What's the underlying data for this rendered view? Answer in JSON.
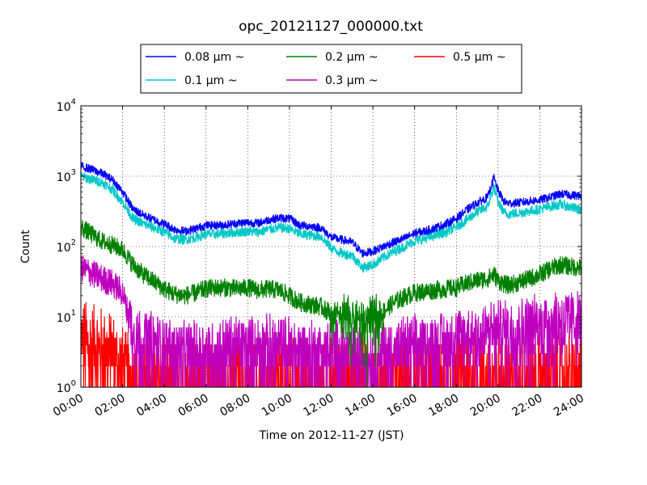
{
  "chart_data": {
    "type": "line",
    "title": "opc_20121127_000000.txt",
    "xlabel": "Time on 2012-11-27 (JST)",
    "ylabel": "Count",
    "xlim": [
      "00:00",
      "24:00"
    ],
    "ylim": [
      1,
      10000
    ],
    "yscale": "log",
    "grid": true,
    "legend_position": "top-center",
    "x_ticks": [
      "00:00",
      "02:00",
      "04:00",
      "06:00",
      "08:00",
      "10:00",
      "12:00",
      "14:00",
      "16:00",
      "18:00",
      "20:00",
      "22:00",
      "24:00"
    ],
    "y_ticks": [
      {
        "base": "10",
        "exp": "0"
      },
      {
        "base": "10",
        "exp": "1"
      },
      {
        "base": "10",
        "exp": "2"
      },
      {
        "base": "10",
        "exp": "3"
      },
      {
        "base": "10",
        "exp": "4"
      }
    ],
    "x_hours": [
      0,
      0.5,
      1,
      1.5,
      2,
      2.5,
      3,
      3.5,
      4,
      4.5,
      5,
      5.5,
      6,
      6.5,
      7,
      7.5,
      8,
      8.5,
      9,
      9.5,
      10,
      10.5,
      11,
      11.5,
      12,
      12.5,
      13,
      13.5,
      14,
      14.5,
      15,
      15.5,
      16,
      16.5,
      17,
      17.5,
      18,
      18.5,
      19,
      19.5,
      19.8,
      20,
      20.3,
      20.5,
      21,
      21.5,
      22,
      22.5,
      23,
      23.5,
      24
    ],
    "series": [
      {
        "name": "0.08 μm ~",
        "color": "#0000ff",
        "noise": 0.06,
        "values": [
          1400,
          1250,
          1100,
          900,
          600,
          340,
          280,
          240,
          210,
          175,
          165,
          180,
          200,
          200,
          205,
          215,
          220,
          215,
          240,
          255,
          250,
          200,
          195,
          185,
          135,
          125,
          115,
          80,
          85,
          100,
          115,
          130,
          155,
          165,
          185,
          210,
          250,
          330,
          420,
          500,
          950,
          620,
          430,
          410,
          420,
          440,
          460,
          500,
          560,
          540,
          520
        ]
      },
      {
        "name": "0.1 μm ~",
        "color": "#00c8c8",
        "noise": 0.07,
        "values": [
          1000,
          900,
          820,
          650,
          430,
          250,
          210,
          185,
          160,
          130,
          125,
          135,
          150,
          150,
          155,
          160,
          165,
          160,
          175,
          185,
          180,
          150,
          145,
          140,
          95,
          80,
          75,
          50,
          55,
          70,
          85,
          100,
          120,
          130,
          145,
          160,
          190,
          240,
          310,
          370,
          700,
          430,
          300,
          290,
          300,
          320,
          340,
          370,
          400,
          360,
          330
        ]
      },
      {
        "name": "0.2 μm ~",
        "color": "#008000",
        "noise": 0.13,
        "values": [
          190,
          150,
          120,
          105,
          90,
          55,
          40,
          32,
          25,
          21,
          20,
          22,
          25,
          26,
          26,
          25,
          26,
          24,
          25,
          24,
          20,
          16,
          15,
          14,
          11,
          10,
          9,
          8,
          9,
          12,
          16,
          19,
          22,
          23,
          24,
          25,
          26,
          30,
          33,
          35,
          40,
          33,
          29,
          28,
          31,
          35,
          40,
          48,
          55,
          52,
          50
        ]
      },
      {
        "name": "0.3 μm ~",
        "color": "#bf00bf",
        "noise": 0.2,
        "values": [
          50,
          42,
          35,
          30,
          22,
          6,
          4,
          4,
          3.5,
          3,
          3,
          3,
          3,
          3,
          3.5,
          3.5,
          3.5,
          3.5,
          3.5,
          3.5,
          3.5,
          3,
          3,
          3,
          3,
          3,
          2.5,
          2.5,
          2.5,
          3,
          3,
          3.5,
          3.5,
          3.5,
          4,
          4,
          4.5,
          5,
          5,
          5.5,
          6,
          6,
          6,
          6,
          6.5,
          7,
          7,
          8,
          8.5,
          8.5,
          8.5
        ]
      },
      {
        "name": "0.5 μm ~",
        "color": "#ff0000",
        "noise": 0.3,
        "values": [
          4,
          3.5,
          3,
          2.5,
          1.6,
          1,
          1,
          1,
          1,
          1,
          1,
          1,
          1,
          1,
          1,
          1,
          1,
          1,
          1,
          1,
          1,
          1,
          1,
          1,
          1,
          1,
          1,
          1,
          1,
          1,
          1,
          1,
          1,
          1,
          1,
          1,
          1.2,
          1.3,
          1.3,
          1.3,
          1.3,
          1.3,
          1.2,
          1.2,
          1.2,
          1.3,
          1.3,
          1.3,
          1.3,
          1.3,
          1.3
        ]
      }
    ]
  }
}
